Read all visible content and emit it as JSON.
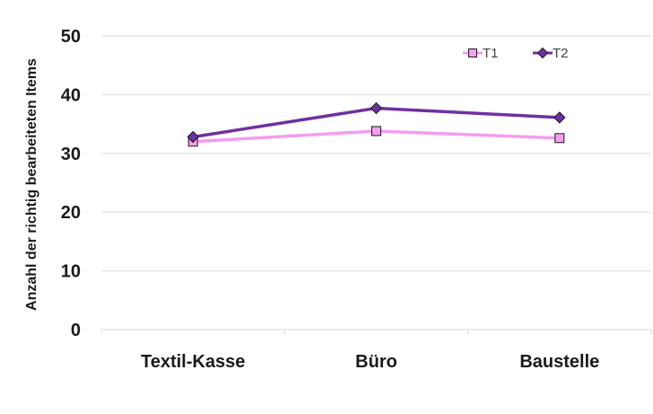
{
  "chart_data": {
    "type": "line",
    "categories": [
      "Textil-Kasse",
      "Büro",
      "Baustelle"
    ],
    "series": [
      {
        "name": "T1",
        "values": [
          32.0,
          33.8,
          32.6
        ],
        "color": "#f49cf0",
        "marker": "square",
        "marker_fill": "#f4a0ef"
      },
      {
        "name": "T2",
        "values": [
          32.8,
          37.7,
          36.1
        ],
        "color": "#7030a0",
        "marker": "diamond",
        "marker_fill": "#7030a0"
      }
    ],
    "ylabel": "Anzahl der richtig bearbeiteten Items",
    "xlabel": "",
    "ylim": [
      0,
      50
    ],
    "yticks": [
      "0",
      "10",
      "20",
      "30",
      "40",
      "50"
    ],
    "grid": true,
    "legend_position": "top-right"
  }
}
